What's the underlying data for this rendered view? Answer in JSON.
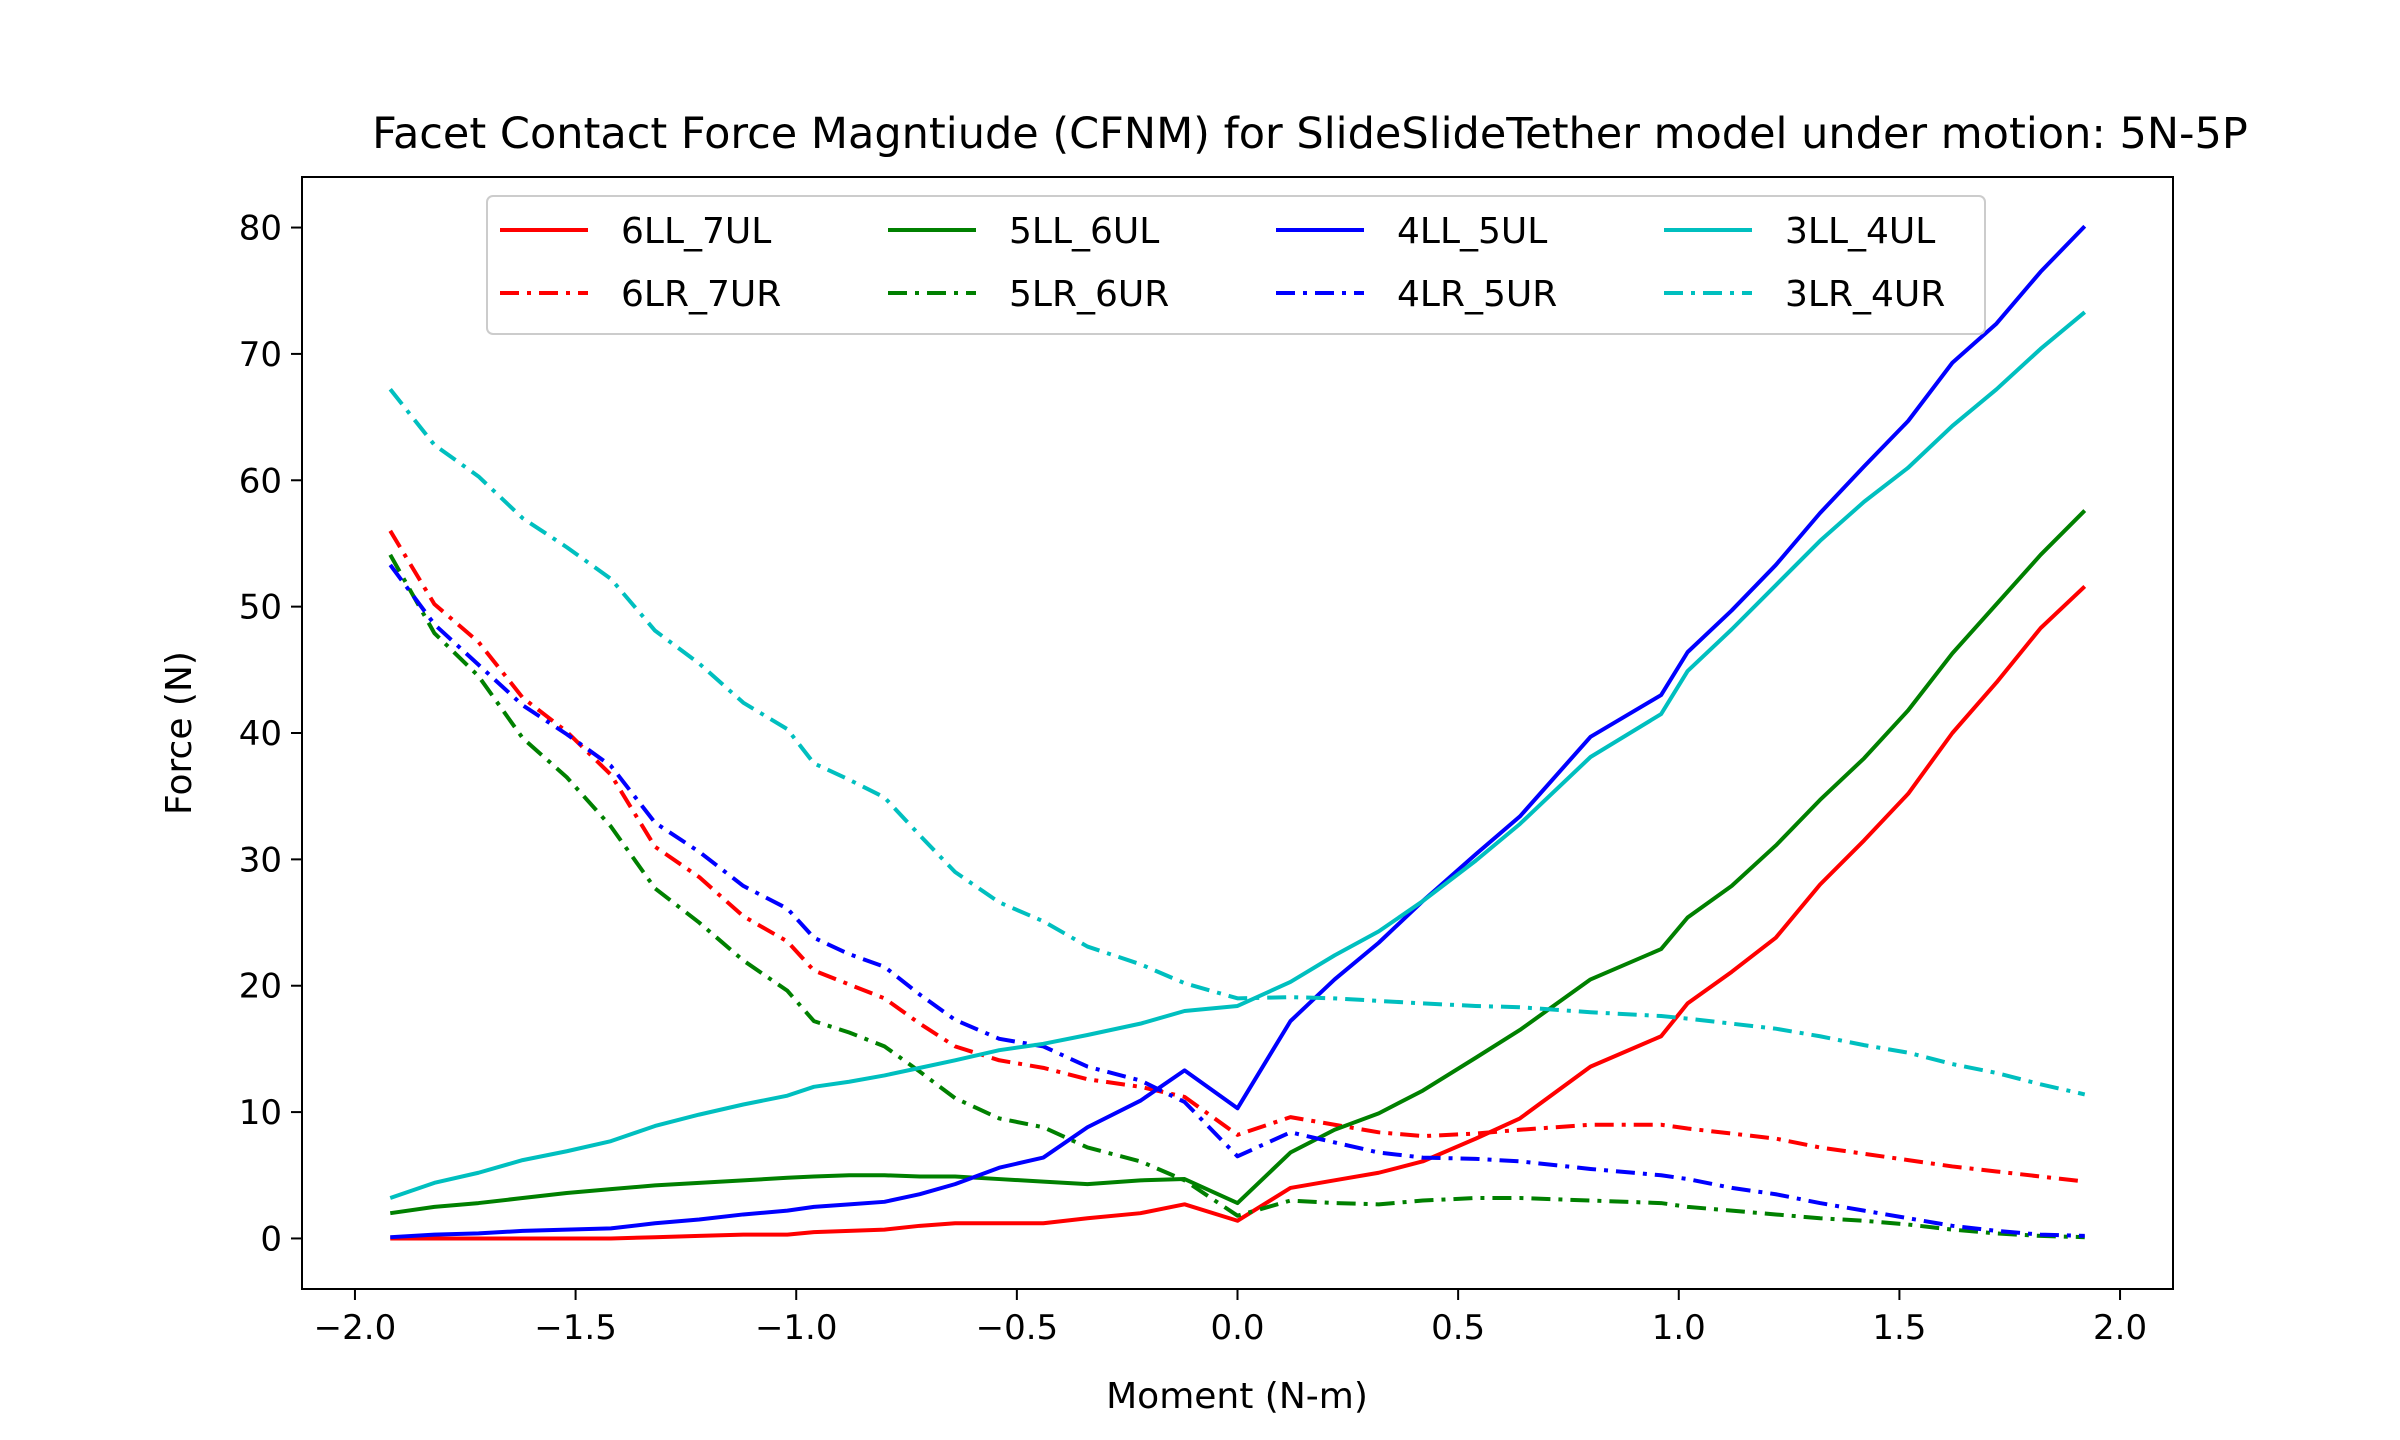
{
  "chart_data": {
    "type": "line",
    "title": "Facet Contact Force Magntiude (CFNM) for SlideSlideTether model under motion: 5N-5P",
    "xlabel": "Moment (N-m)",
    "ylabel": "Force (N)",
    "xlim": [
      -2.12,
      2.12
    ],
    "ylim": [
      -4,
      84
    ],
    "xticks": [
      -2.0,
      -1.5,
      -1.0,
      -0.5,
      0.0,
      0.5,
      1.0,
      1.5,
      2.0
    ],
    "xtick_labels": [
      "−2.0",
      "−1.5",
      "−1.0",
      "−0.5",
      "0.0",
      "0.5",
      "1.0",
      "1.5",
      "2.0"
    ],
    "yticks": [
      0,
      10,
      20,
      30,
      40,
      50,
      60,
      70,
      80
    ],
    "ytick_labels": [
      "0",
      "10",
      "20",
      "30",
      "40",
      "50",
      "60",
      "70",
      "80"
    ],
    "grid": false,
    "legend_placement": "top-center",
    "legend_columns": 4,
    "x": [
      -1.92,
      -1.82,
      -1.72,
      -1.62,
      -1.52,
      -1.42,
      -1.32,
      -1.22,
      -1.12,
      -1.02,
      -0.96,
      -0.88,
      -0.8,
      -0.72,
      -0.64,
      -0.54,
      -0.44,
      -0.34,
      -0.22,
      -0.12,
      0.0,
      0.12,
      0.22,
      0.32,
      0.42,
      0.54,
      0.64,
      0.8,
      0.96,
      1.02,
      1.12,
      1.22,
      1.32,
      1.42,
      1.52,
      1.62,
      1.72,
      1.82,
      1.92
    ],
    "series": [
      {
        "name": "6LL_7UL",
        "color": "#ff0000",
        "dash": "solid",
        "values": [
          0.0,
          0.0,
          0.0,
          0.0,
          0.0,
          0.0,
          0.1,
          0.2,
          0.3,
          0.3,
          0.5,
          0.6,
          0.7,
          1.0,
          1.2,
          1.2,
          1.2,
          1.6,
          2.0,
          2.7,
          1.4,
          4.0,
          4.6,
          5.2,
          6.1,
          7.9,
          9.5,
          13.6,
          16.0,
          18.6,
          21.1,
          23.8,
          28.0,
          31.5,
          35.2,
          40.0,
          44.0,
          48.3,
          51.6
        ]
      },
      {
        "name": "6LR_7UR",
        "color": "#ff0000",
        "dash": "dashdot",
        "values": [
          56.0,
          50.2,
          47.2,
          42.8,
          40.1,
          36.7,
          31.0,
          28.6,
          25.5,
          23.5,
          21.2,
          20.1,
          19.0,
          17.0,
          15.2,
          14.1,
          13.5,
          12.6,
          12.0,
          11.2,
          8.2,
          9.6,
          9.0,
          8.4,
          8.1,
          8.3,
          8.6,
          9.0,
          9.0,
          8.7,
          8.3,
          7.9,
          7.2,
          6.7,
          6.2,
          5.7,
          5.3,
          4.9,
          4.5
        ]
      },
      {
        "name": "5LL_6UL",
        "color": "#008000",
        "dash": "solid",
        "values": [
          2.0,
          2.5,
          2.8,
          3.2,
          3.6,
          3.9,
          4.2,
          4.4,
          4.6,
          4.8,
          4.9,
          5.0,
          5.0,
          4.9,
          4.9,
          4.7,
          4.5,
          4.3,
          4.6,
          4.7,
          2.8,
          6.8,
          8.6,
          9.9,
          11.7,
          14.3,
          16.5,
          20.5,
          22.9,
          25.4,
          27.9,
          31.1,
          34.7,
          38.0,
          41.8,
          46.3,
          50.2,
          54.1,
          57.6
        ]
      },
      {
        "name": "5LR_6UR",
        "color": "#008000",
        "dash": "dashdot",
        "values": [
          54.1,
          47.9,
          44.5,
          39.6,
          36.5,
          32.6,
          27.7,
          25.0,
          22.0,
          19.6,
          17.2,
          16.3,
          15.2,
          13.2,
          11.1,
          9.5,
          8.8,
          7.2,
          6.1,
          4.6,
          1.8,
          3.0,
          2.8,
          2.7,
          3.0,
          3.2,
          3.2,
          3.0,
          2.8,
          2.5,
          2.2,
          1.9,
          1.6,
          1.4,
          1.1,
          0.7,
          0.4,
          0.2,
          0.1
        ]
      },
      {
        "name": "4LL_5UL",
        "color": "#0000ff",
        "dash": "solid",
        "values": [
          0.1,
          0.3,
          0.4,
          0.6,
          0.7,
          0.8,
          1.2,
          1.5,
          1.9,
          2.2,
          2.5,
          2.7,
          2.9,
          3.5,
          4.3,
          5.6,
          6.4,
          8.8,
          10.9,
          13.3,
          10.3,
          17.2,
          20.5,
          23.4,
          26.7,
          30.4,
          33.4,
          39.7,
          43.0,
          46.4,
          49.7,
          53.3,
          57.4,
          61.1,
          64.7,
          69.3,
          72.4,
          76.5,
          80.1
        ]
      },
      {
        "name": "4LR_5UR",
        "color": "#0000ff",
        "dash": "dashdot",
        "values": [
          53.3,
          48.6,
          45.4,
          42.2,
          39.9,
          37.4,
          32.9,
          30.6,
          27.9,
          26.1,
          23.8,
          22.5,
          21.5,
          19.3,
          17.3,
          15.8,
          15.2,
          13.6,
          12.5,
          10.8,
          6.5,
          8.4,
          7.6,
          6.8,
          6.4,
          6.3,
          6.1,
          5.5,
          5.0,
          4.7,
          4.0,
          3.5,
          2.8,
          2.2,
          1.6,
          1.0,
          0.6,
          0.3,
          0.2
        ]
      },
      {
        "name": "3LL_4UL",
        "color": "#00bfbf",
        "dash": "solid",
        "values": [
          3.2,
          4.4,
          5.2,
          6.2,
          6.9,
          7.7,
          8.9,
          9.8,
          10.6,
          11.3,
          12.0,
          12.4,
          12.9,
          13.5,
          14.1,
          14.9,
          15.4,
          16.1,
          17.0,
          18.0,
          18.4,
          20.3,
          22.4,
          24.3,
          26.7,
          29.9,
          32.8,
          38.1,
          41.5,
          44.9,
          48.2,
          51.7,
          55.2,
          58.3,
          61.0,
          64.3,
          67.2,
          70.4,
          73.3
        ]
      },
      {
        "name": "3LR_4UR",
        "color": "#00bfbf",
        "dash": "dashdot",
        "values": [
          67.2,
          62.8,
          60.3,
          57.0,
          54.7,
          52.2,
          48.1,
          45.5,
          42.4,
          40.3,
          37.6,
          36.3,
          34.9,
          31.9,
          29.0,
          26.6,
          25.1,
          23.1,
          21.7,
          20.2,
          19.0,
          19.1,
          19.0,
          18.8,
          18.6,
          18.4,
          18.3,
          17.9,
          17.6,
          17.4,
          17.0,
          16.6,
          16.0,
          15.3,
          14.7,
          13.8,
          13.1,
          12.2,
          11.4
        ]
      }
    ]
  }
}
